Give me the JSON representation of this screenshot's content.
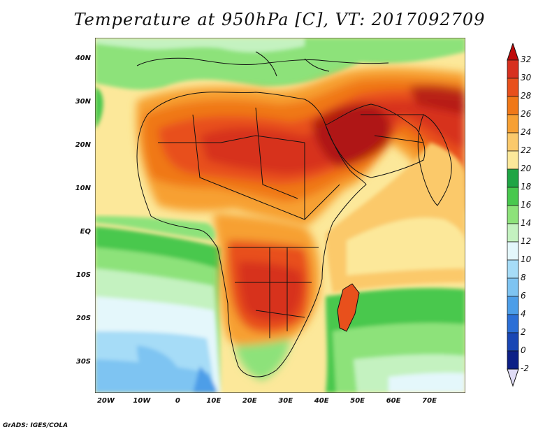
{
  "title": "Temperature at 950hPa [C], VT: 2017092709",
  "credit": "GrADS: IGES/COLA",
  "map": {
    "lon_range": [
      -23,
      80
    ],
    "lat_range": [
      -37,
      45
    ],
    "lat_ticks": [
      {
        "value": 40,
        "label": "40N"
      },
      {
        "value": 30,
        "label": "30N"
      },
      {
        "value": 20,
        "label": "20N"
      },
      {
        "value": 10,
        "label": "10N"
      },
      {
        "value": 0,
        "label": "EQ"
      },
      {
        "value": -10,
        "label": "10S"
      },
      {
        "value": -20,
        "label": "20S"
      },
      {
        "value": -30,
        "label": "30S"
      }
    ],
    "lon_ticks": [
      {
        "value": -20,
        "label": "20W"
      },
      {
        "value": -10,
        "label": "10W"
      },
      {
        "value": 0,
        "label": "0"
      },
      {
        "value": 10,
        "label": "10E"
      },
      {
        "value": 20,
        "label": "20E"
      },
      {
        "value": 30,
        "label": "30E"
      },
      {
        "value": 40,
        "label": "40E"
      },
      {
        "value": 50,
        "label": "50E"
      },
      {
        "value": 60,
        "label": "60E"
      },
      {
        "value": 70,
        "label": "70E"
      }
    ]
  },
  "colorbar": {
    "labels": [
      "32",
      "30",
      "28",
      "26",
      "24",
      "22",
      "20",
      "18",
      "16",
      "14",
      "12",
      "10",
      "8",
      "6",
      "4",
      "2",
      "0",
      "-2"
    ],
    "colors": [
      "#a50f0f",
      "#d7301f",
      "#e8501c",
      "#f07818",
      "#f7a033",
      "#fbc96b",
      "#fce89a",
      "#1fa544",
      "#48c84e",
      "#8de27a",
      "#c4f2c0",
      "#e4f7fb",
      "#a6dcf7",
      "#7ec4f2",
      "#4d9ee8",
      "#2c6fd6",
      "#1946b4",
      "#0c1f86"
    ],
    "top_arrow_color": "#bf0a0a",
    "bottom_arrow_color": "#e0dcf6"
  }
}
